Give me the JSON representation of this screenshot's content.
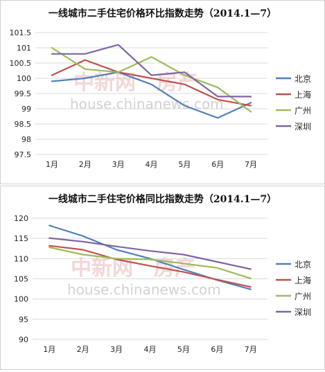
{
  "chart_data": [
    {
      "type": "line",
      "title": "一线城市二手住宅价格环比指数走势（2014.1—7）",
      "categories": [
        "1月",
        "2月",
        "3月",
        "4月",
        "5月",
        "6月",
        "7月"
      ],
      "ylim": [
        97.5,
        101.5
      ],
      "yticks": [
        "101.5",
        "101",
        "100.5",
        "100",
        "99.5",
        "99",
        "98.5",
        "98",
        "97.5"
      ],
      "grid": true,
      "legend": "right",
      "watermark": [
        "中新网",
        "房产",
        "house.chinanews.com"
      ],
      "series": [
        {
          "name": "北京",
          "color": "#4f81bd",
          "values": [
            99.9,
            100.0,
            100.2,
            99.8,
            99.1,
            98.7,
            99.2
          ]
        },
        {
          "name": "上海",
          "color": "#c0504d",
          "values": [
            100.1,
            100.6,
            100.2,
            100.0,
            99.8,
            99.3,
            99.1
          ]
        },
        {
          "name": "广州",
          "color": "#9bbb59",
          "values": [
            101.0,
            100.3,
            100.2,
            100.7,
            100.1,
            99.7,
            98.9
          ]
        },
        {
          "name": "深圳",
          "color": "#8064a2",
          "values": [
            100.8,
            100.8,
            101.1,
            100.1,
            100.2,
            99.4,
            99.4
          ]
        }
      ]
    },
    {
      "type": "line",
      "title": "一线城市二手住宅价格同比指数走势（2014.1—7）",
      "categories": [
        "1月",
        "2月",
        "3月",
        "4月",
        "5月",
        "6月",
        "7月"
      ],
      "ylim": [
        90,
        120
      ],
      "yticks": [
        "120",
        "115",
        "110",
        "105",
        "100",
        "95",
        "90"
      ],
      "grid": true,
      "legend": "right",
      "watermark": [
        "中新网",
        "房产",
        "house.chinanews.com"
      ],
      "series": [
        {
          "name": "北京",
          "color": "#4f81bd",
          "values": [
            118.2,
            115.6,
            112.2,
            110.0,
            107.3,
            104.7,
            102.4
          ]
        },
        {
          "name": "上海",
          "color": "#c0504d",
          "values": [
            113.2,
            112.2,
            109.8,
            108.2,
            106.7,
            104.8,
            103.0
          ]
        },
        {
          "name": "广州",
          "color": "#9bbb59",
          "values": [
            112.8,
            111.0,
            110.0,
            109.8,
            108.8,
            107.7,
            105.1
          ]
        },
        {
          "name": "深圳",
          "color": "#8064a2",
          "values": [
            115.1,
            114.2,
            113.0,
            111.9,
            111.0,
            109.2,
            107.4
          ]
        }
      ]
    }
  ]
}
